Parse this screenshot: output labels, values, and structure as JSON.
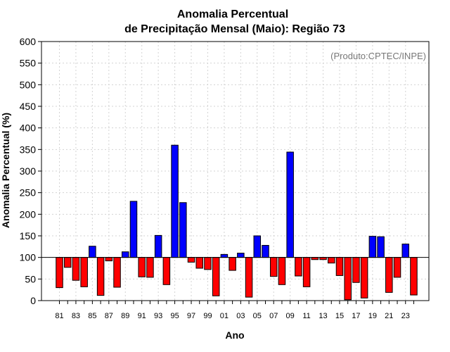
{
  "chart_data": {
    "type": "bar",
    "title_line1": "Anomalia Percentual",
    "title_line2": "de Precipitação Mensal (Maio): Região 73",
    "credit": "(Produto:CPTEC/INPE)",
    "xlabel": "Ano",
    "ylabel": "Anomalia Percentual (%)",
    "baseline": 100,
    "ylim": [
      0,
      600
    ],
    "yticks": [
      0,
      50,
      100,
      150,
      200,
      250,
      300,
      350,
      400,
      450,
      500,
      550,
      600
    ],
    "grid": true,
    "colors": {
      "above": "#0000ff",
      "below": "#ff0000",
      "edge": "#000000",
      "grid": "#d3d3d3"
    },
    "categories": [
      "81",
      "82",
      "83",
      "84",
      "85",
      "86",
      "87",
      "88",
      "89",
      "90",
      "91",
      "92",
      "93",
      "94",
      "95",
      "96",
      "97",
      "98",
      "99",
      "00",
      "01",
      "02",
      "03",
      "04",
      "05",
      "06",
      "07",
      "08",
      "09",
      "10",
      "11",
      "12",
      "13",
      "14",
      "15",
      "16",
      "17",
      "18",
      "19",
      "20",
      "21",
      "22",
      "23",
      "24"
    ],
    "tick_labels": [
      "81",
      "83",
      "85",
      "87",
      "89",
      "91",
      "93",
      "95",
      "97",
      "99",
      "01",
      "03",
      "05",
      "07",
      "09",
      "11",
      "13",
      "15",
      "17",
      "19",
      "21",
      "23"
    ],
    "values": [
      30,
      77,
      47,
      32,
      126,
      12,
      92,
      31,
      113,
      230,
      55,
      54,
      151,
      37,
      360,
      227,
      89,
      75,
      72,
      11,
      107,
      70,
      110,
      8,
      150,
      128,
      56,
      37,
      344,
      57,
      32,
      95,
      95,
      87,
      58,
      2,
      42,
      6,
      149,
      148,
      19,
      54,
      131,
      13
    ]
  }
}
